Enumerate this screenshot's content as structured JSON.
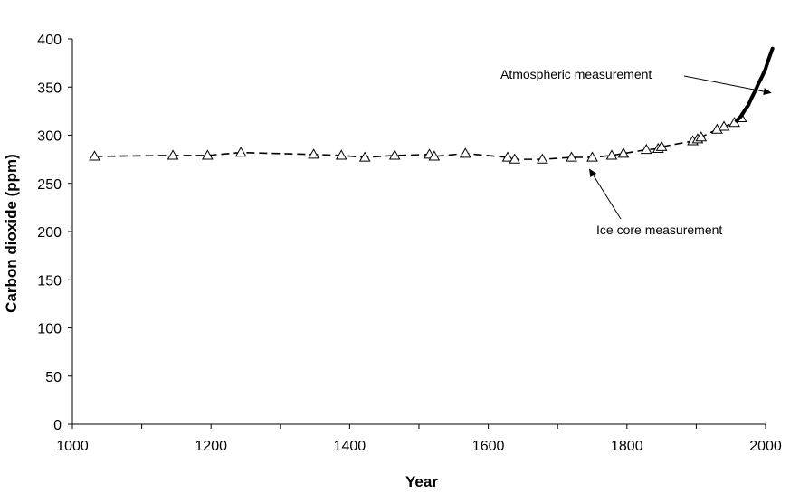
{
  "chart_data": {
    "type": "line",
    "title": "",
    "xlabel": "Year",
    "ylabel": "Carbon dioxide (ppm)",
    "xlim": [
      1000,
      2000
    ],
    "ylim": [
      0,
      400
    ],
    "xticks": [
      "1000",
      "1200",
      "1400",
      "1600",
      "1800",
      "2000"
    ],
    "yticks": [
      "0",
      "50",
      "100",
      "150",
      "200",
      "250",
      "300",
      "350",
      "400"
    ],
    "grid": false,
    "legend": "none",
    "series": [
      {
        "style": "dashed line with open triangle markers",
        "x": [
          1032,
          1145,
          1195,
          1243,
          1348,
          1388,
          1422,
          1465,
          1515,
          1522,
          1567,
          1628,
          1638,
          1678,
          1720,
          1750,
          1778,
          1795,
          1828,
          1845,
          1850,
          1895,
          1902,
          1907,
          1930,
          1940,
          1955,
          1965
        ],
        "y": [
          278,
          279,
          279,
          282,
          280,
          279,
          277,
          279,
          280,
          278,
          281,
          277,
          275,
          275,
          277,
          277,
          279,
          281,
          285,
          286,
          288,
          294,
          296,
          298,
          306,
          309,
          313,
          318
        ]
      },
      {
        "style": "solid thick line",
        "x": [
          1958,
          1965,
          1970,
          1975,
          1980,
          1985,
          1990,
          1995,
          2000,
          2005,
          2010
        ],
        "y": [
          315,
          320,
          326,
          331,
          339,
          346,
          354,
          361,
          369,
          380,
          390
        ]
      }
    ],
    "annotations": [
      {
        "text": "Atmospheric measurement",
        "points_to": {
          "x": 2005,
          "y": 345
        }
      },
      {
        "text": "Ice core measurement",
        "points_to": {
          "x": 1750,
          "y": 259
        }
      }
    ]
  }
}
